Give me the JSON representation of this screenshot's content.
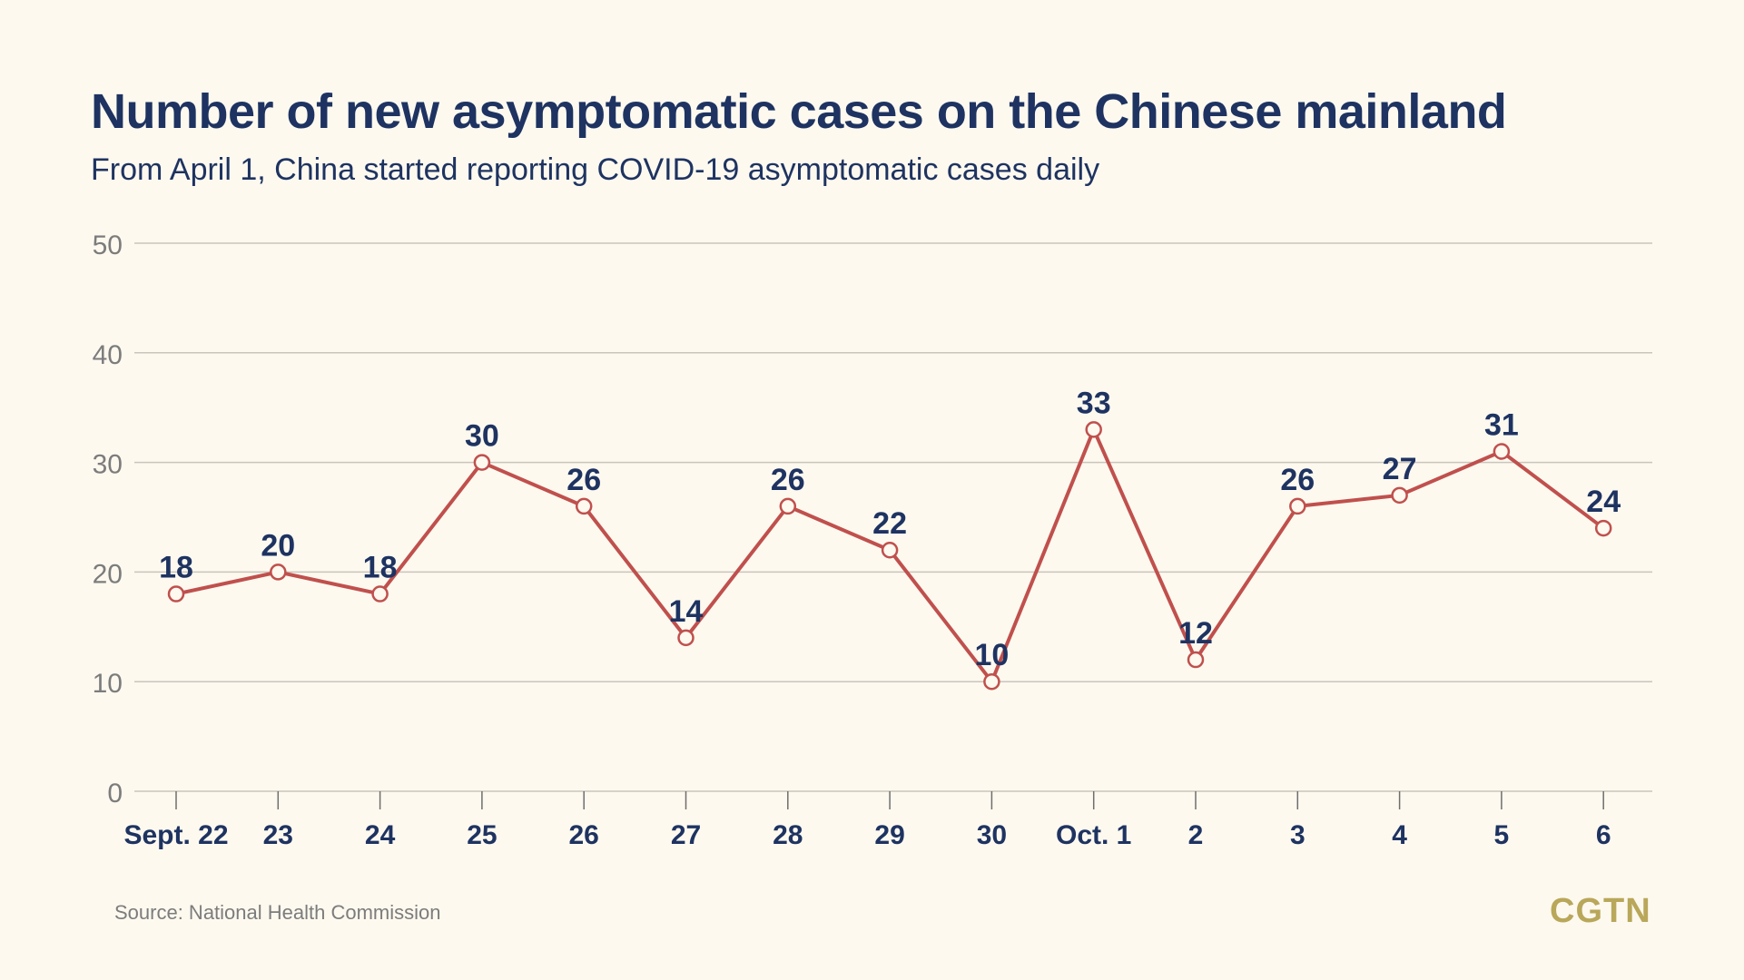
{
  "header": {
    "title": "Number of new asymptomatic cases on the Chinese mainland",
    "subtitle": "From April 1, China started reporting COVID-19 asymptomatic cases daily"
  },
  "footer": {
    "source": "Source: National Health Commission",
    "logo": "CGTN"
  },
  "colors": {
    "line": "#c0504d",
    "label": "#1e3361",
    "grid": "#c9c5bc",
    "tick_text": "#7c7c7c",
    "marker_fill": "#fdf9ef"
  },
  "chart_data": {
    "type": "line",
    "title": "Number of new asymptomatic cases on the Chinese mainland",
    "categories": [
      "Sept. 22",
      "23",
      "24",
      "25",
      "26",
      "27",
      "28",
      "29",
      "30",
      "Oct. 1",
      "2",
      "3",
      "4",
      "5",
      "6"
    ],
    "values": [
      18,
      20,
      18,
      30,
      26,
      14,
      26,
      22,
      10,
      33,
      12,
      26,
      27,
      31,
      24
    ],
    "data_labels": [
      "18",
      "20",
      "18",
      "30",
      "26",
      "14",
      "26",
      "22",
      "10",
      "33",
      "12",
      "26",
      "27",
      "31",
      "24"
    ],
    "ylim": [
      0,
      50
    ],
    "yticks": [
      0,
      10,
      20,
      30,
      40,
      50
    ],
    "ytick_labels": [
      "0",
      "10",
      "20",
      "30",
      "40",
      "50"
    ],
    "xlabel": "",
    "ylabel": "",
    "grid": true,
    "legend": "none"
  }
}
